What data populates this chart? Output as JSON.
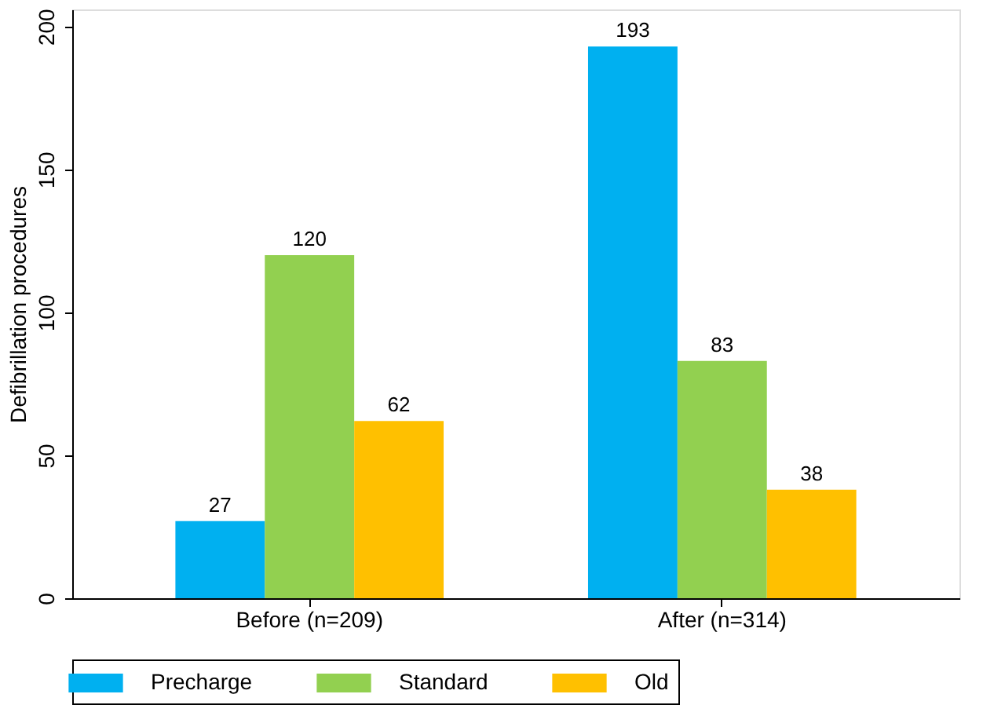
{
  "chart_data": {
    "type": "bar",
    "ylabel": "Defibrillation procedures",
    "categories": [
      "Before (n=209)",
      "After (n=314)"
    ],
    "series": [
      {
        "name": "Precharge",
        "color": "#00b0f0",
        "values": [
          27,
          193
        ]
      },
      {
        "name": "Standard",
        "color": "#92d050",
        "values": [
          120,
          83
        ]
      },
      {
        "name": "Old",
        "color": "#ffc000",
        "values": [
          62,
          38
        ]
      }
    ],
    "ylim": [
      0,
      206
    ],
    "yticks": [
      0,
      50,
      100,
      150,
      200
    ],
    "grid": false,
    "legend": "bottom",
    "data_labels": true
  }
}
